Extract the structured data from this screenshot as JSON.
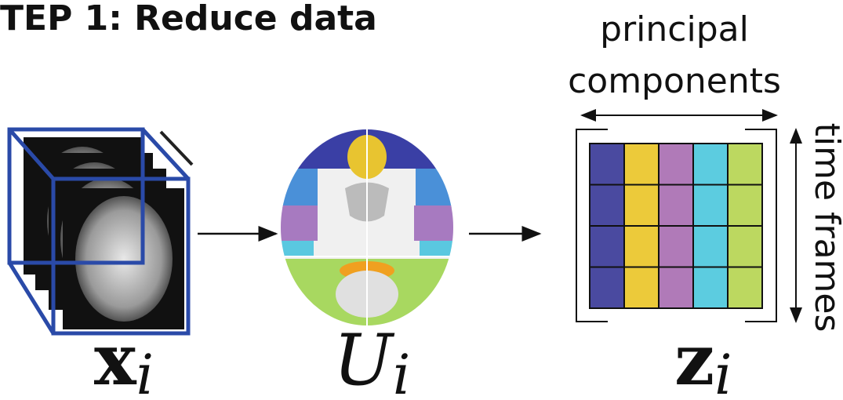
{
  "title": "TEP 1: Reduce data",
  "data_label": {
    "main": "x",
    "sub": "i"
  },
  "basis_label": {
    "main": "U",
    "sub": "i"
  },
  "reduced_label": {
    "main": "z",
    "sub": "i"
  },
  "axis_top": [
    "principal",
    "components"
  ],
  "axis_side": "time frames"
}
